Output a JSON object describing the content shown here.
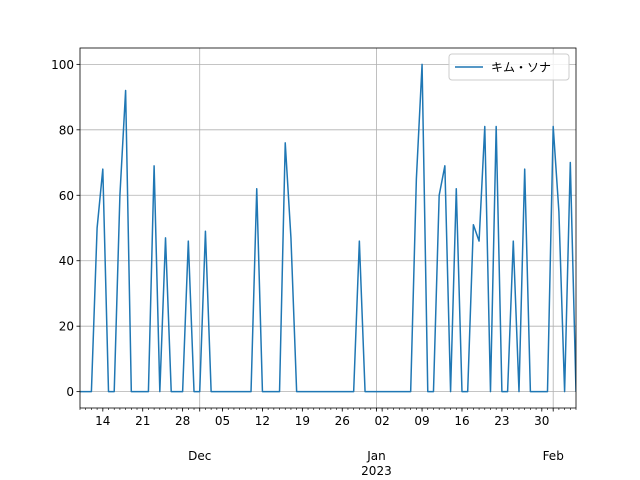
{
  "chart_data": {
    "type": "line",
    "x": [
      "11-10",
      "11-11",
      "11-12",
      "11-13",
      "11-14",
      "11-15",
      "11-16",
      "11-17",
      "11-18",
      "11-19",
      "11-20",
      "11-21",
      "11-22",
      "11-23",
      "11-24",
      "11-25",
      "11-26",
      "11-27",
      "11-28",
      "11-29",
      "11-30",
      "12-01",
      "12-02",
      "12-03",
      "12-04",
      "12-05",
      "12-06",
      "12-07",
      "12-08",
      "12-09",
      "12-10",
      "12-11",
      "12-12",
      "12-13",
      "12-14",
      "12-15",
      "12-16",
      "12-17",
      "12-18",
      "12-19",
      "12-20",
      "12-21",
      "12-22",
      "12-23",
      "12-24",
      "12-25",
      "12-26",
      "12-27",
      "12-28",
      "12-29",
      "12-30",
      "12-31",
      "01-01",
      "01-02",
      "01-03",
      "01-04",
      "01-05",
      "01-06",
      "01-07",
      "01-08",
      "01-09",
      "01-10",
      "01-11",
      "01-12",
      "01-13",
      "01-14",
      "01-15",
      "01-16",
      "01-17",
      "01-18",
      "01-19",
      "01-20",
      "01-21",
      "01-22",
      "01-23",
      "01-24",
      "01-25",
      "01-26",
      "01-27",
      "01-28",
      "01-29",
      "01-30",
      "01-31",
      "02-01",
      "02-02",
      "02-03",
      "02-04",
      "02-05"
    ],
    "series": [
      {
        "name": "キム・ソナ",
        "color": "#1f77b4",
        "values": [
          0,
          0,
          0,
          50,
          68,
          0,
          0,
          60,
          92,
          0,
          0,
          0,
          0,
          69,
          0,
          47,
          0,
          0,
          0,
          46,
          0,
          0,
          49,
          0,
          0,
          0,
          0,
          0,
          0,
          0,
          0,
          62,
          0,
          0,
          0,
          0,
          76,
          47,
          0,
          0,
          0,
          0,
          0,
          0,
          0,
          0,
          0,
          0,
          0,
          46,
          0,
          0,
          0,
          0,
          0,
          0,
          0,
          0,
          0,
          65,
          100,
          0,
          0,
          60,
          69,
          0,
          62,
          0,
          0,
          51,
          46,
          81,
          0,
          81,
          0,
          0,
          46,
          0,
          68,
          0,
          0,
          0,
          0,
          81,
          55,
          0,
          70,
          0
        ]
      }
    ],
    "xlim": [
      "11-10",
      "02-05"
    ],
    "xticks": [
      {
        "value": "11-14",
        "label": "14"
      },
      {
        "value": "11-21",
        "label": "21"
      },
      {
        "value": "11-28",
        "label": "28"
      },
      {
        "value": "12-05",
        "label": "05"
      },
      {
        "value": "12-12",
        "label": "12"
      },
      {
        "value": "12-19",
        "label": "19"
      },
      {
        "value": "12-26",
        "label": "26"
      },
      {
        "value": "01-02",
        "label": "02"
      },
      {
        "value": "01-09",
        "label": "09"
      },
      {
        "value": "01-16",
        "label": "16"
      },
      {
        "value": "01-23",
        "label": "23"
      },
      {
        "value": "01-30",
        "label": "30"
      }
    ],
    "xticks_month": [
      {
        "value": "12-01",
        "label": "Dec"
      },
      {
        "value": "01-01",
        "label": "Jan",
        "sublabel": "2023"
      },
      {
        "value": "02-01",
        "label": "Feb"
      }
    ],
    "ylim": [
      -5,
      105
    ],
    "yticks": [
      0,
      20,
      40,
      60,
      80,
      100
    ],
    "grid": true,
    "legend": "upper right"
  }
}
